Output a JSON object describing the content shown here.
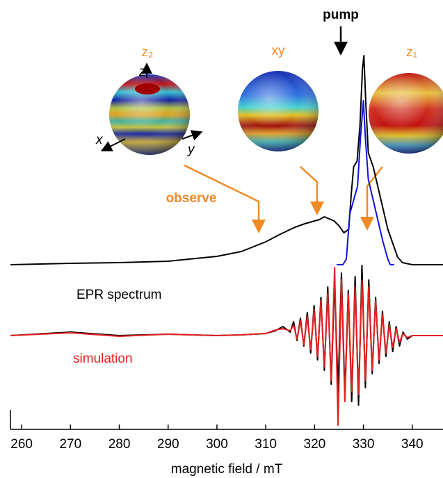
{
  "chart_data": {
    "type": "line",
    "xlabel": "magnetic field / mT",
    "xlim": [
      257.7,
      346.3
    ],
    "xticks": [
      260,
      270,
      280,
      290,
      300,
      310,
      320,
      330,
      340
    ],
    "ylim": [
      0,
      618
    ],
    "series": [
      {
        "color": "#000000",
        "x": [
          257.7,
          270,
          280,
          290,
          300,
          305,
          310,
          313,
          316,
          318,
          320,
          321,
          322,
          323,
          324,
          325,
          326,
          327,
          327.5,
          328,
          328.7,
          329.3,
          329.8,
          330.1,
          330.5,
          331,
          332,
          333,
          334,
          335,
          336,
          337,
          338,
          340,
          346.3
        ],
        "values": [
          237,
          239,
          240,
          242,
          249,
          256,
          270,
          281,
          291,
          296,
          300,
          302,
          306,
          303,
          300,
          293,
          283,
          288,
          338,
          378,
          386,
          438,
          518,
          538,
          468,
          398,
          378,
          348,
          318,
          288,
          268,
          248,
          240,
          237,
          237
        ]
      },
      {
        "color": "#1010e0",
        "x": [
          324.5,
          325.8,
          326.5,
          327.2,
          328,
          328.8,
          329.4,
          330,
          330.4,
          331,
          332,
          333,
          334,
          335,
          335.5,
          336.3
        ],
        "values": [
          237,
          237,
          245,
          310,
          330,
          350,
          420,
          473,
          420,
          360,
          330,
          300,
          270,
          245,
          237,
          237
        ]
      },
      {
        "name": "EPR spectrum",
        "color": "#000000",
        "x": [
          257.7,
          270,
          280,
          290,
          300,
          305,
          310,
          312,
          313.5,
          315,
          315.7,
          316.4,
          317.1,
          317.8,
          318.5,
          319.2,
          319.9,
          320.6,
          321.3,
          322,
          322.7,
          323.4,
          324.1,
          324.8,
          325.5,
          326.2,
          326.9,
          327.6,
          328.3,
          329,
          329.7,
          330.4,
          331.1,
          331.8,
          332.5,
          333.2,
          333.9,
          334.6,
          335.3,
          336,
          336.7,
          337.4,
          338.1,
          339,
          340,
          346.3
        ],
        "values": [
          135,
          140,
          135,
          137,
          135,
          136,
          138,
          142,
          148,
          140,
          155,
          128,
          160,
          120,
          168,
          110,
          178,
          100,
          190,
          85,
          205,
          65,
          215,
          55,
          225,
          50,
          200,
          40,
          220,
          35,
          236,
          60,
          215,
          80,
          190,
          95,
          170,
          105,
          155,
          112,
          148,
          120,
          140,
          130,
          135,
          135
        ]
      },
      {
        "name": "simulation",
        "color": "#e52020",
        "x": [
          257.7,
          270,
          280,
          290,
          300,
          305,
          310,
          312,
          313.5,
          315,
          315.7,
          316.4,
          317.1,
          317.8,
          318.5,
          319.2,
          319.9,
          320.6,
          321.3,
          322,
          322.7,
          323.4,
          324.1,
          324.8,
          325.5,
          326.2,
          326.9,
          327.6,
          328.3,
          329,
          329.7,
          330.4,
          331.1,
          331.8,
          332.5,
          333.2,
          333.9,
          334.6,
          335.3,
          336,
          336.7,
          337.4,
          338.1,
          339,
          340,
          346.3
        ],
        "values": [
          135,
          139,
          134,
          137,
          135,
          136,
          138,
          143,
          145,
          142,
          150,
          130,
          156,
          122,
          162,
          115,
          172,
          105,
          185,
          90,
          195,
          70,
          233,
          6,
          215,
          40,
          195,
          55,
          205,
          50,
          215,
          70,
          205,
          85,
          185,
          100,
          165,
          110,
          150,
          118,
          145,
          125,
          138,
          132,
          135,
          135
        ]
      }
    ],
    "annotations": {
      "pump": "pump",
      "observe": "observe",
      "sphere_z2": "z₂",
      "sphere_xy": "xy",
      "sphere_z1": "z₁",
      "axis_z": "z",
      "axis_x": "x",
      "axis_y": "y"
    }
  }
}
